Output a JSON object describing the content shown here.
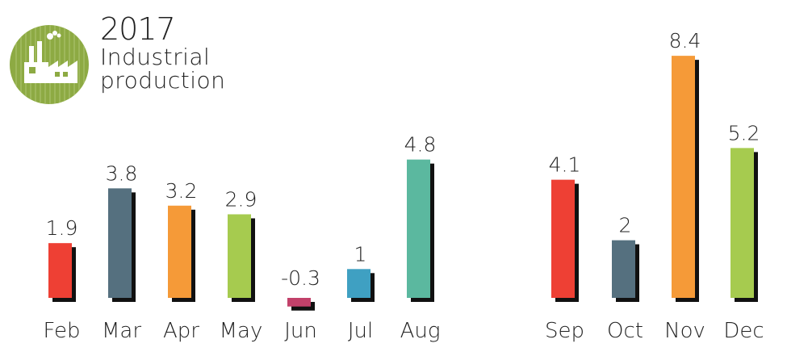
{
  "header": {
    "year": "2017",
    "title_line1": "Industrial",
    "title_line2": "production",
    "icon": "factory-icon"
  },
  "colors": {
    "logo_green": "#8DAA43",
    "shadow": "#111111",
    "label_text": "#222222"
  },
  "chart_data": {
    "type": "bar",
    "title": "2017 Industrial production",
    "xlabel": "",
    "ylabel": "",
    "grid": false,
    "legend": "none",
    "categories": [
      "Feb",
      "Mar",
      "Apr",
      "May",
      "Jun",
      "Jul",
      "Aug",
      "Sep",
      "Oct",
      "Nov",
      "Dec"
    ],
    "values": [
      1.9,
      3.8,
      3.2,
      2.9,
      -0.3,
      1,
      4.8,
      4.1,
      2,
      8.4,
      5.2
    ],
    "value_labels": [
      "1.9",
      "3.8",
      "3.2",
      "2.9",
      "-0.3",
      "1",
      "4.8",
      "4.1",
      "2",
      "8.4",
      "5.2"
    ],
    "bar_colors": [
      "#EE4034",
      "#55707F",
      "#F59A38",
      "#A6CB4F",
      "#C2416A",
      "#3FA0C2",
      "#5BB89F",
      "#EE4034",
      "#55707F",
      "#F59A38",
      "#A6CB4F"
    ]
  }
}
